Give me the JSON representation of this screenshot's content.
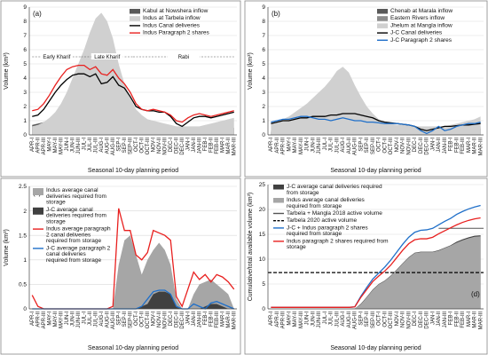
{
  "months_labels": [
    "APR-I",
    "APR-II",
    "APR-III",
    "MAY-I",
    "MAY-II",
    "MAY-III",
    "JUN-I",
    "JUN-II",
    "JUN-III",
    "JUL-I",
    "JUL-II",
    "JUL-III",
    "AUG-I",
    "AUG-II",
    "AUG-III",
    "SEP-I",
    "SEP-II",
    "SEP-III",
    "OCT-I",
    "OCT-II",
    "OCT-III",
    "NOV-I",
    "NOV-II",
    "NOV-III",
    "DEC-I",
    "DEC-II",
    "DEC-III",
    "JAN-I",
    "JAN-II",
    "JAN-III",
    "FEB-I",
    "FEB-II",
    "FEB-III",
    "MAR-I",
    "MAR-II",
    "MAR-III"
  ],
  "chart_data": [
    {
      "panel": "(a)",
      "type": "area",
      "xlabel": "Seasonal 10-day planning period",
      "ylabel": "Volume (km³)",
      "ylim": [
        0,
        9
      ],
      "yticks": [
        0,
        1,
        2,
        3,
        4,
        5,
        6,
        7,
        8,
        9
      ],
      "grid": "horizontal",
      "legend": "top-right",
      "annotations": [
        "Early Kharif",
        "Late Kharif",
        "Rabi"
      ],
      "series": [
        {
          "name": "Kabul at Nowshera inflow",
          "kind": "area",
          "color": "#595959",
          "values": [
            0.7,
            0.8,
            0.9,
            1.1,
            1.3,
            1.4,
            1.5,
            1.6,
            1.6,
            1.7,
            1.7,
            1.6,
            1.5,
            1.4,
            1.2,
            1.0,
            0.8,
            0.6,
            0.5,
            0.4,
            0.35,
            0.3,
            0.3,
            0.3,
            0.3,
            0.25,
            0.25,
            0.25,
            0.25,
            0.25,
            0.3,
            0.3,
            0.35,
            0.4,
            0.45,
            0.5
          ]
        },
        {
          "name": "Indus at Tarbela inflow",
          "kind": "area",
          "color": "#d0d0d0",
          "values": [
            0.6,
            0.7,
            0.9,
            1.2,
            1.6,
            2.2,
            3.0,
            4.0,
            5.0,
            6.0,
            7.2,
            8.2,
            8.6,
            8.0,
            6.8,
            5.0,
            3.6,
            2.6,
            1.8,
            1.4,
            1.1,
            1.0,
            0.9,
            0.8,
            0.7,
            0.6,
            0.6,
            0.6,
            0.6,
            0.6,
            0.7,
            0.8,
            0.9,
            1.0,
            1.1,
            1.2
          ]
        },
        {
          "name": "Indus Canal deliveries",
          "kind": "line",
          "color": "#000000",
          "values": [
            1.3,
            1.4,
            1.8,
            2.4,
            3.0,
            3.5,
            3.9,
            4.2,
            4.3,
            4.3,
            4.1,
            4.3,
            3.6,
            3.7,
            4.1,
            3.5,
            3.3,
            2.7,
            2.0,
            1.8,
            1.7,
            1.7,
            1.6,
            1.6,
            1.3,
            0.8,
            0.6,
            0.9,
            1.2,
            1.3,
            1.3,
            1.2,
            1.3,
            1.4,
            1.5,
            1.6
          ]
        },
        {
          "name": "Indus Paragraph 2 shares",
          "kind": "line",
          "color": "#e8201f",
          "values": [
            1.7,
            1.8,
            2.2,
            2.8,
            3.5,
            4.1,
            4.6,
            4.8,
            4.9,
            4.9,
            4.6,
            4.8,
            4.3,
            4.2,
            4.6,
            4.0,
            3.6,
            3.0,
            2.2,
            1.8,
            1.7,
            1.8,
            1.7,
            1.6,
            1.4,
            1.0,
            0.9,
            1.2,
            1.4,
            1.5,
            1.4,
            1.3,
            1.4,
            1.5,
            1.6,
            1.7
          ]
        }
      ]
    },
    {
      "panel": "(b)",
      "type": "area",
      "xlabel": "Seasonal 10-day planning period",
      "ylabel": "Volume (km³)",
      "ylim": [
        0,
        9
      ],
      "yticks": [
        0,
        1,
        2,
        3,
        4,
        5,
        6,
        7,
        8,
        9
      ],
      "grid": "horizontal",
      "legend": "top-right",
      "series": [
        {
          "name": "Chenab at Marala inflow",
          "kind": "area",
          "color": "#595959",
          "values": [
            0.2,
            0.25,
            0.3,
            0.4,
            0.5,
            0.6,
            0.7,
            0.9,
            1.1,
            1.4,
            1.8,
            2.3,
            2.7,
            2.2,
            1.7,
            1.3,
            0.9,
            0.6,
            0.4,
            0.3,
            0.25,
            0.2,
            0.2,
            0.2,
            0.2,
            0.2,
            0.2,
            0.2,
            0.2,
            0.2,
            0.25,
            0.3,
            0.3,
            0.35,
            0.4,
            0.45
          ]
        },
        {
          "name": "Eastern Rivers inflow",
          "kind": "area",
          "color": "#8c8c8c",
          "values": [
            0.3,
            0.35,
            0.4,
            0.5,
            0.7,
            0.9,
            1.1,
            1.4,
            1.7,
            2.0,
            2.5,
            3.1,
            3.5,
            3.0,
            2.4,
            1.9,
            1.3,
            0.9,
            0.6,
            0.45,
            0.35,
            0.3,
            0.3,
            0.3,
            0.3,
            0.3,
            0.3,
            0.3,
            0.3,
            0.3,
            0.35,
            0.4,
            0.45,
            0.5,
            0.55,
            0.6
          ]
        },
        {
          "name": "Jhelum at Mangla inflow",
          "kind": "area",
          "color": "#d0d0d0",
          "values": [
            0.8,
            0.9,
            1.1,
            1.3,
            1.6,
            1.9,
            2.2,
            2.6,
            3.0,
            3.4,
            3.9,
            4.5,
            4.8,
            4.4,
            3.5,
            2.7,
            2.0,
            1.5,
            1.1,
            0.9,
            0.8,
            0.7,
            0.7,
            0.7,
            0.6,
            0.6,
            0.6,
            0.6,
            0.6,
            0.6,
            0.7,
            0.8,
            0.9,
            1.0,
            1.1,
            1.3
          ]
        },
        {
          "name": "J-C Canal deliveries",
          "kind": "line",
          "color": "#000000",
          "values": [
            0.8,
            0.9,
            1.0,
            1.0,
            1.1,
            1.2,
            1.2,
            1.3,
            1.3,
            1.3,
            1.4,
            1.4,
            1.5,
            1.5,
            1.5,
            1.4,
            1.3,
            1.2,
            1.0,
            0.9,
            0.85,
            0.8,
            0.75,
            0.7,
            0.6,
            0.4,
            0.3,
            0.4,
            0.5,
            0.6,
            0.6,
            0.65,
            0.7,
            0.7,
            0.75,
            0.8
          ]
        },
        {
          "name": "J-C Paragraph 2 shares",
          "kind": "line",
          "color": "#1f6fc9",
          "values": [
            0.9,
            1.0,
            1.1,
            1.1,
            1.2,
            1.3,
            1.3,
            1.2,
            1.1,
            1.1,
            1.0,
            1.1,
            1.2,
            1.1,
            1.0,
            1.0,
            0.9,
            0.9,
            0.85,
            0.8,
            0.8,
            0.8,
            0.75,
            0.7,
            0.6,
            0.3,
            0.1,
            0.3,
            0.6,
            0.3,
            0.4,
            0.6,
            0.7,
            0.8,
            0.8,
            0.9
          ]
        }
      ]
    },
    {
      "panel": "(c)",
      "type": "area",
      "xlabel": "Seasonal 10-day planning period",
      "ylabel": "Volume (km³)",
      "ylim": [
        0,
        2.5
      ],
      "yticks": [
        0,
        0.5,
        1,
        1.5,
        2,
        2.5
      ],
      "ytick_labels": [
        "0",
        "0.5",
        "1",
        "1.5",
        "2",
        "2.5"
      ],
      "grid": "horizontal",
      "legend": "top-left",
      "series": [
        {
          "name": "Indus average canal deliveries required from storage",
          "kind": "area",
          "color": "#a6a6a6",
          "values": [
            0,
            0,
            0,
            0,
            0,
            0,
            0,
            0,
            0,
            0,
            0,
            0,
            0,
            0,
            0,
            0.9,
            1.4,
            1.5,
            1.1,
            0.7,
            1.0,
            1.2,
            1.35,
            1.2,
            0.9,
            0.2,
            0,
            0,
            0.3,
            0.5,
            0.55,
            0.6,
            0.5,
            0.4,
            0.3,
            0
          ]
        },
        {
          "name": "J-C average canal deliveries required from storage",
          "kind": "area",
          "color": "#404040",
          "values": [
            0,
            0,
            0,
            0,
            0,
            0,
            0,
            0,
            0,
            0,
            0,
            0,
            0,
            0,
            0,
            0,
            0,
            0,
            0,
            0.05,
            0.1,
            0.3,
            0.35,
            0.35,
            0.3,
            0.05,
            0,
            0,
            0,
            0,
            0.05,
            0.1,
            0.1,
            0.05,
            0,
            0
          ]
        },
        {
          "name": "Indus average paragraph 2 canal deliveries required from storage",
          "kind": "line",
          "color": "#e8201f",
          "values": [
            0.28,
            0.05,
            0,
            0,
            0,
            0,
            0,
            0,
            0,
            0,
            0,
            0,
            0,
            0,
            0.05,
            2.05,
            1.6,
            1.6,
            1.1,
            1.0,
            1.15,
            1.6,
            1.55,
            1.5,
            1.4,
            0.25,
            0.05,
            0.4,
            0.75,
            0.6,
            0.7,
            0.55,
            0.7,
            0.65,
            0.55,
            0.4
          ]
        },
        {
          "name": "J-C average paragraph 2 canal deliveries required from storage",
          "kind": "line",
          "color": "#1f6fc9",
          "values": [
            0,
            0,
            0,
            0,
            0,
            0,
            0,
            0,
            0,
            0,
            0,
            0,
            0,
            0,
            0,
            0,
            0,
            0,
            0,
            0.05,
            0.2,
            0.35,
            0.38,
            0.38,
            0.3,
            0.05,
            0,
            0,
            0.1,
            0.05,
            0,
            0.12,
            0.15,
            0.1,
            0.05,
            0
          ]
        }
      ]
    },
    {
      "panel": "(d)",
      "type": "area",
      "xlabel": "Seasonal 10-day planning period",
      "ylabel": "Cumulative/total available volume (km³)",
      "ylim": [
        0,
        25
      ],
      "yticks": [
        0,
        5,
        10,
        15,
        20,
        25
      ],
      "grid": "horizontal",
      "legend": "top-left",
      "series": [
        {
          "name": "J-C average canal deliveries required from storage",
          "kind": "area",
          "color": "#404040",
          "values": [
            0,
            0,
            0,
            0,
            0,
            0,
            0,
            0,
            0,
            0,
            0,
            0,
            0,
            0,
            0.05,
            1.0,
            2.4,
            3.9,
            5.0,
            5.7,
            6.7,
            7.9,
            9.2,
            10.4,
            11.3,
            11.5,
            11.5,
            11.5,
            11.8,
            12.3,
            12.8,
            13.5,
            14.0,
            14.4,
            14.7,
            14.8
          ]
        },
        {
          "name": "Indus average canal deliveries required from storage",
          "kind": "area",
          "color": "#a6a6a6",
          "values": [
            0,
            0,
            0,
            0,
            0,
            0,
            0,
            0,
            0,
            0,
            0,
            0,
            0,
            0,
            0.05,
            0.9,
            2.3,
            3.8,
            4.9,
            5.6,
            6.6,
            7.8,
            9.1,
            10.3,
            11.2,
            11.4,
            11.4,
            11.4,
            11.7,
            12.2,
            12.7,
            13.3,
            13.8,
            14.2,
            14.5,
            14.6
          ]
        },
        {
          "name": "Tarbela + Mangla 2018 active volume",
          "kind": "hline",
          "color": "#555555",
          "value": 16.2,
          "from_index": 28
        },
        {
          "name": "Tarbela 2020 active volume",
          "kind": "hline-dashed",
          "color": "#000000",
          "value": 7.3
        },
        {
          "name": "J-C + Indus paragraph 2 shares required from storage",
          "kind": "line",
          "color": "#1f6fc9",
          "values": [
            0.3,
            0.3,
            0.3,
            0.3,
            0.3,
            0.3,
            0.3,
            0.3,
            0.3,
            0.3,
            0.3,
            0.3,
            0.3,
            0.3,
            0.4,
            2.5,
            4.3,
            6.0,
            7.2,
            8.4,
            9.8,
            11.4,
            13.0,
            14.4,
            15.4,
            15.8,
            15.9,
            16.2,
            16.9,
            17.6,
            18.2,
            19.0,
            19.6,
            20.1,
            20.5,
            20.8
          ]
        },
        {
          "name": "Indus paragraph 2 shares required from storage",
          "kind": "line",
          "color": "#e8201f",
          "values": [
            0.3,
            0.3,
            0.3,
            0.3,
            0.3,
            0.3,
            0.3,
            0.3,
            0.3,
            0.3,
            0.3,
            0.3,
            0.3,
            0.3,
            0.4,
            2.3,
            3.9,
            5.5,
            6.6,
            7.6,
            8.8,
            10.3,
            11.8,
            13.1,
            13.9,
            14.1,
            14.1,
            14.4,
            15.1,
            15.7,
            16.3,
            16.9,
            17.4,
            17.8,
            18.1,
            18.3
          ]
        }
      ]
    }
  ]
}
